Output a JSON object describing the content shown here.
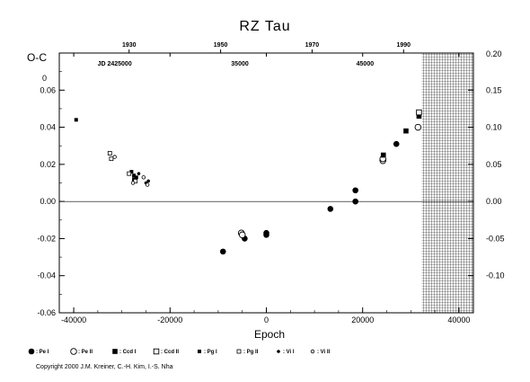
{
  "chart_data": {
    "type": "scatter",
    "title": "RZ Tau",
    "xlabel": "Epoch",
    "ylabel": "O-C",
    "xlim": [
      -43000,
      43000
    ],
    "ylim": [
      -0.06,
      0.08
    ],
    "ylim_right": [
      -0.15,
      0.2
    ],
    "x_ticks": [
      "-40000",
      "-20000",
      "0",
      "20000",
      "40000"
    ],
    "y_ticks": [
      "-0.06",
      "-0.04",
      "-0.02",
      "0.00",
      "0.02",
      "0.04",
      "0.06"
    ],
    "y_top_tick": "0",
    "y_right_ticks": [
      "-0.10",
      "-0.05",
      "0.00",
      "0.05",
      "0.10",
      "0.15"
    ],
    "y_right_top": "0.20",
    "year_ticks": [
      {
        "label": "1930",
        "epoch": -28500
      },
      {
        "label": "1950",
        "epoch": -9500
      },
      {
        "label": "1970",
        "epoch": 9500
      },
      {
        "label": "1990",
        "epoch": 28500
      }
    ],
    "jd_ticks": [
      {
        "label": "JD 2425000",
        "epoch": -31500
      },
      {
        "label": "35000",
        "epoch": -5500
      },
      {
        "label": "45000",
        "epoch": 20500
      }
    ],
    "hatched_region": {
      "from_epoch": 32300,
      "to_epoch": 43000
    },
    "legend": [
      {
        "marker": "filled-circle",
        "label": ": Pe I"
      },
      {
        "marker": "open-circle",
        "label": ": Pe II"
      },
      {
        "marker": "filled-square",
        "label": ": Ccd I"
      },
      {
        "marker": "open-square",
        "label": ": Ccd II"
      },
      {
        "marker": "filled-small-square",
        "label": ": Pg I"
      },
      {
        "marker": "open-small-square",
        "label": ": Pg II"
      },
      {
        "marker": "filled-dot",
        "label": ": Vi I"
      },
      {
        "marker": "open-dot",
        "label": ": Vi II"
      }
    ],
    "series": [
      {
        "marker": "filled-circle",
        "x": [
          -9000,
          -4500,
          0,
          0,
          13300,
          18500,
          18500,
          27000
        ],
        "y": [
          -0.027,
          -0.02,
          -0.018,
          -0.017,
          -0.004,
          0.006,
          0.0,
          0.031
        ]
      },
      {
        "marker": "open-circle",
        "x": [
          -5200,
          -5000,
          24200,
          24200,
          31500
        ],
        "y": [
          -0.017,
          -0.018,
          0.022,
          0.023,
          0.04
        ]
      },
      {
        "marker": "filled-square",
        "x": [
          24300,
          29000,
          31700
        ],
        "y": [
          0.025,
          0.038,
          0.046
        ]
      },
      {
        "marker": "open-square",
        "x": [
          31700
        ],
        "y": [
          0.048
        ]
      },
      {
        "marker": "filled-small-square",
        "x": [
          -39500,
          -28000,
          -27500,
          -27500,
          -27000
        ],
        "y": [
          0.044,
          0.016,
          0.014,
          0.012,
          0.013
        ]
      },
      {
        "marker": "open-small-square",
        "x": [
          -32500,
          -32200,
          -28500,
          -27200
        ],
        "y": [
          0.026,
          0.023,
          0.015,
          0.011
        ]
      },
      {
        "marker": "filled-dot",
        "x": [
          -26500,
          -24500,
          -25000
        ],
        "y": [
          0.015,
          0.011,
          0.01
        ]
      },
      {
        "marker": "open-dot",
        "x": [
          -31500,
          -25500,
          -24700,
          -27700
        ],
        "y": [
          0.024,
          0.013,
          0.009,
          0.01
        ]
      }
    ]
  },
  "footer": {
    "copyright": "Copyright 2000 J.M. Kreiner, C.-H. Kim, I.-S. Nha"
  }
}
